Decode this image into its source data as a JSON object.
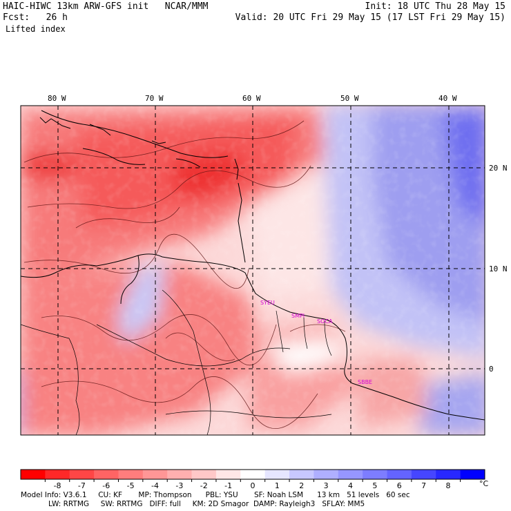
{
  "header": {
    "model": "HAIC-HIWC 13km ARW-GFS init   NCAR/MMM",
    "fcst": "Fcst:   26 h",
    "field": "Lifted index",
    "init": "Init: 18 UTC Thu 28 May 15",
    "valid": "Valid: 20 UTC Fri 29 May 15 (17 LST Fri 29 May 15)"
  },
  "map": {
    "lon_labels": [
      "80 W",
      "70 W",
      "60 W",
      "50 W",
      "40 W"
    ],
    "lat_labels": [
      "20 N",
      "10 N",
      "0"
    ],
    "sites": [
      "SYEU",
      "SMPI",
      "SOCA",
      "SBBE"
    ]
  },
  "colorbar": {
    "unit": "°C",
    "ticks": [
      "-8",
      "-7",
      "-6",
      "-5",
      "-4",
      "-3",
      "-2",
      "-1",
      "0",
      "1",
      "2",
      "3",
      "4",
      "5",
      "6",
      "7",
      "8"
    ],
    "colors": [
      "#ff0000",
      "#ff2828",
      "#ff4646",
      "#ff6464",
      "#ff7d7d",
      "#ff9696",
      "#ffafaf",
      "#ffc8c8",
      "#ffe6e6",
      "#ffffff",
      "#e6e6ff",
      "#c8c8ff",
      "#afafff",
      "#9696ff",
      "#7d7dff",
      "#6464ff",
      "#4646ff",
      "#2828ff",
      "#0000ff"
    ]
  },
  "footer": {
    "line1": "Model Info: V3.6.1     CU: KF       MP: Thompson      PBL: YSU       SF: Noah LSM      13 km   51 levels   60 sec",
    "line2": "            LW: RRTMG     SW: RRTMG   DIFF: full     KM: 2D Smagor  DAMP: Rayleigh3   SFLAY: MM5"
  }
}
